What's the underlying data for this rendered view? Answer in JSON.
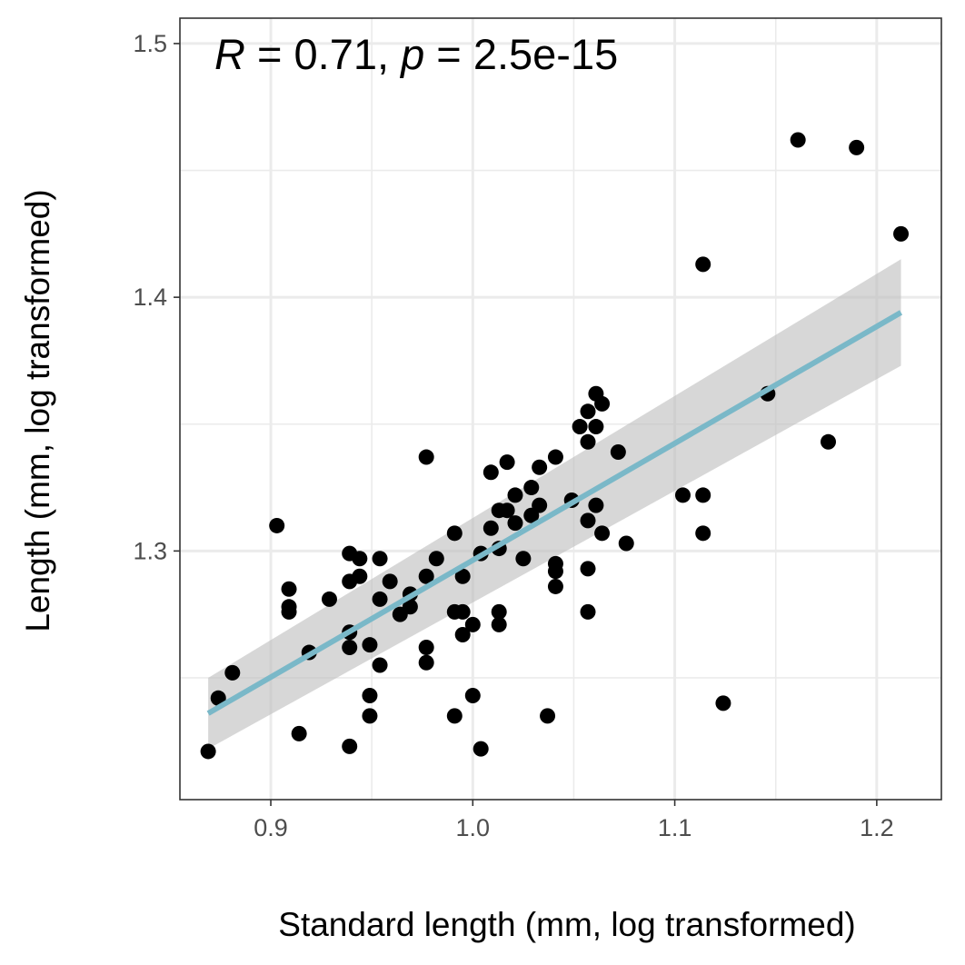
{
  "chart_data": {
    "type": "scatter",
    "xlabel": "Standard length (mm, log transformed)",
    "ylabel": "Length (mm, log transformed)",
    "xlim": [
      0.855,
      1.232
    ],
    "ylim": [
      1.202,
      1.51
    ],
    "x_ticks": [
      0.9,
      1.0,
      1.1,
      1.2
    ],
    "x_tick_labels": [
      "0.9",
      "1.0",
      "1.1",
      "1.2"
    ],
    "y_ticks": [
      1.3,
      1.4,
      1.5
    ],
    "y_tick_labels": [
      "1.3",
      "1.4",
      "1.5"
    ],
    "grid": true,
    "annotation": {
      "r_symbol": "R",
      "r_text": " = 0.71, ",
      "p_symbol": "p",
      "p_text": " = 2.5e-15"
    },
    "regression": {
      "x_start": 0.869,
      "y_start": 1.236,
      "x_end": 1.212,
      "y_end": 1.394,
      "ci_start": [
        1.222,
        1.25
      ],
      "ci_end": [
        1.373,
        1.415
      ]
    },
    "colors": {
      "points": "#000000",
      "line": "#7ab8c8",
      "ribbon": "#bdbdbd",
      "grid": "#ebebeb",
      "panel_border": "#333333"
    },
    "points": [
      [
        0.869,
        1.221
      ],
      [
        0.874,
        1.242
      ],
      [
        0.881,
        1.252
      ],
      [
        0.903,
        1.31
      ],
      [
        0.909,
        1.285
      ],
      [
        0.909,
        1.278
      ],
      [
        0.909,
        1.276
      ],
      [
        0.914,
        1.228
      ],
      [
        0.919,
        1.26
      ],
      [
        0.929,
        1.281
      ],
      [
        0.939,
        1.299
      ],
      [
        0.939,
        1.288
      ],
      [
        0.939,
        1.268
      ],
      [
        0.939,
        1.262
      ],
      [
        0.939,
        1.223
      ],
      [
        0.944,
        1.297
      ],
      [
        0.944,
        1.29
      ],
      [
        0.949,
        1.263
      ],
      [
        0.949,
        1.243
      ],
      [
        0.949,
        1.235
      ],
      [
        0.954,
        1.297
      ],
      [
        0.954,
        1.281
      ],
      [
        0.954,
        1.255
      ],
      [
        0.959,
        1.288
      ],
      [
        0.964,
        1.275
      ],
      [
        0.969,
        1.283
      ],
      [
        0.969,
        1.278
      ],
      [
        0.977,
        1.337
      ],
      [
        0.977,
        1.29
      ],
      [
        0.977,
        1.262
      ],
      [
        0.977,
        1.256
      ],
      [
        0.982,
        1.297
      ],
      [
        0.991,
        1.307
      ],
      [
        0.991,
        1.276
      ],
      [
        0.991,
        1.235
      ],
      [
        0.995,
        1.29
      ],
      [
        0.995,
        1.276
      ],
      [
        0.995,
        1.267
      ],
      [
        1.0,
        1.271
      ],
      [
        1.0,
        1.243
      ],
      [
        1.004,
        1.299
      ],
      [
        1.004,
        1.222
      ],
      [
        1.009,
        1.331
      ],
      [
        1.009,
        1.309
      ],
      [
        1.013,
        1.316
      ],
      [
        1.013,
        1.301
      ],
      [
        1.013,
        1.276
      ],
      [
        1.013,
        1.271
      ],
      [
        1.017,
        1.335
      ],
      [
        1.017,
        1.316
      ],
      [
        1.021,
        1.322
      ],
      [
        1.021,
        1.311
      ],
      [
        1.025,
        1.297
      ],
      [
        1.029,
        1.325
      ],
      [
        1.029,
        1.314
      ],
      [
        1.033,
        1.333
      ],
      [
        1.033,
        1.318
      ],
      [
        1.037,
        1.235
      ],
      [
        1.041,
        1.337
      ],
      [
        1.041,
        1.295
      ],
      [
        1.041,
        1.292
      ],
      [
        1.041,
        1.286
      ],
      [
        1.049,
        1.32
      ],
      [
        1.053,
        1.349
      ],
      [
        1.057,
        1.355
      ],
      [
        1.057,
        1.343
      ],
      [
        1.057,
        1.312
      ],
      [
        1.057,
        1.293
      ],
      [
        1.057,
        1.276
      ],
      [
        1.061,
        1.362
      ],
      [
        1.061,
        1.349
      ],
      [
        1.061,
        1.318
      ],
      [
        1.064,
        1.358
      ],
      [
        1.064,
        1.307
      ],
      [
        1.072,
        1.339
      ],
      [
        1.076,
        1.303
      ],
      [
        1.104,
        1.322
      ],
      [
        1.114,
        1.413
      ],
      [
        1.114,
        1.322
      ],
      [
        1.114,
        1.307
      ],
      [
        1.124,
        1.24
      ],
      [
        1.146,
        1.362
      ],
      [
        1.161,
        1.462
      ],
      [
        1.176,
        1.343
      ],
      [
        1.19,
        1.459
      ],
      [
        1.212,
        1.425
      ]
    ]
  }
}
